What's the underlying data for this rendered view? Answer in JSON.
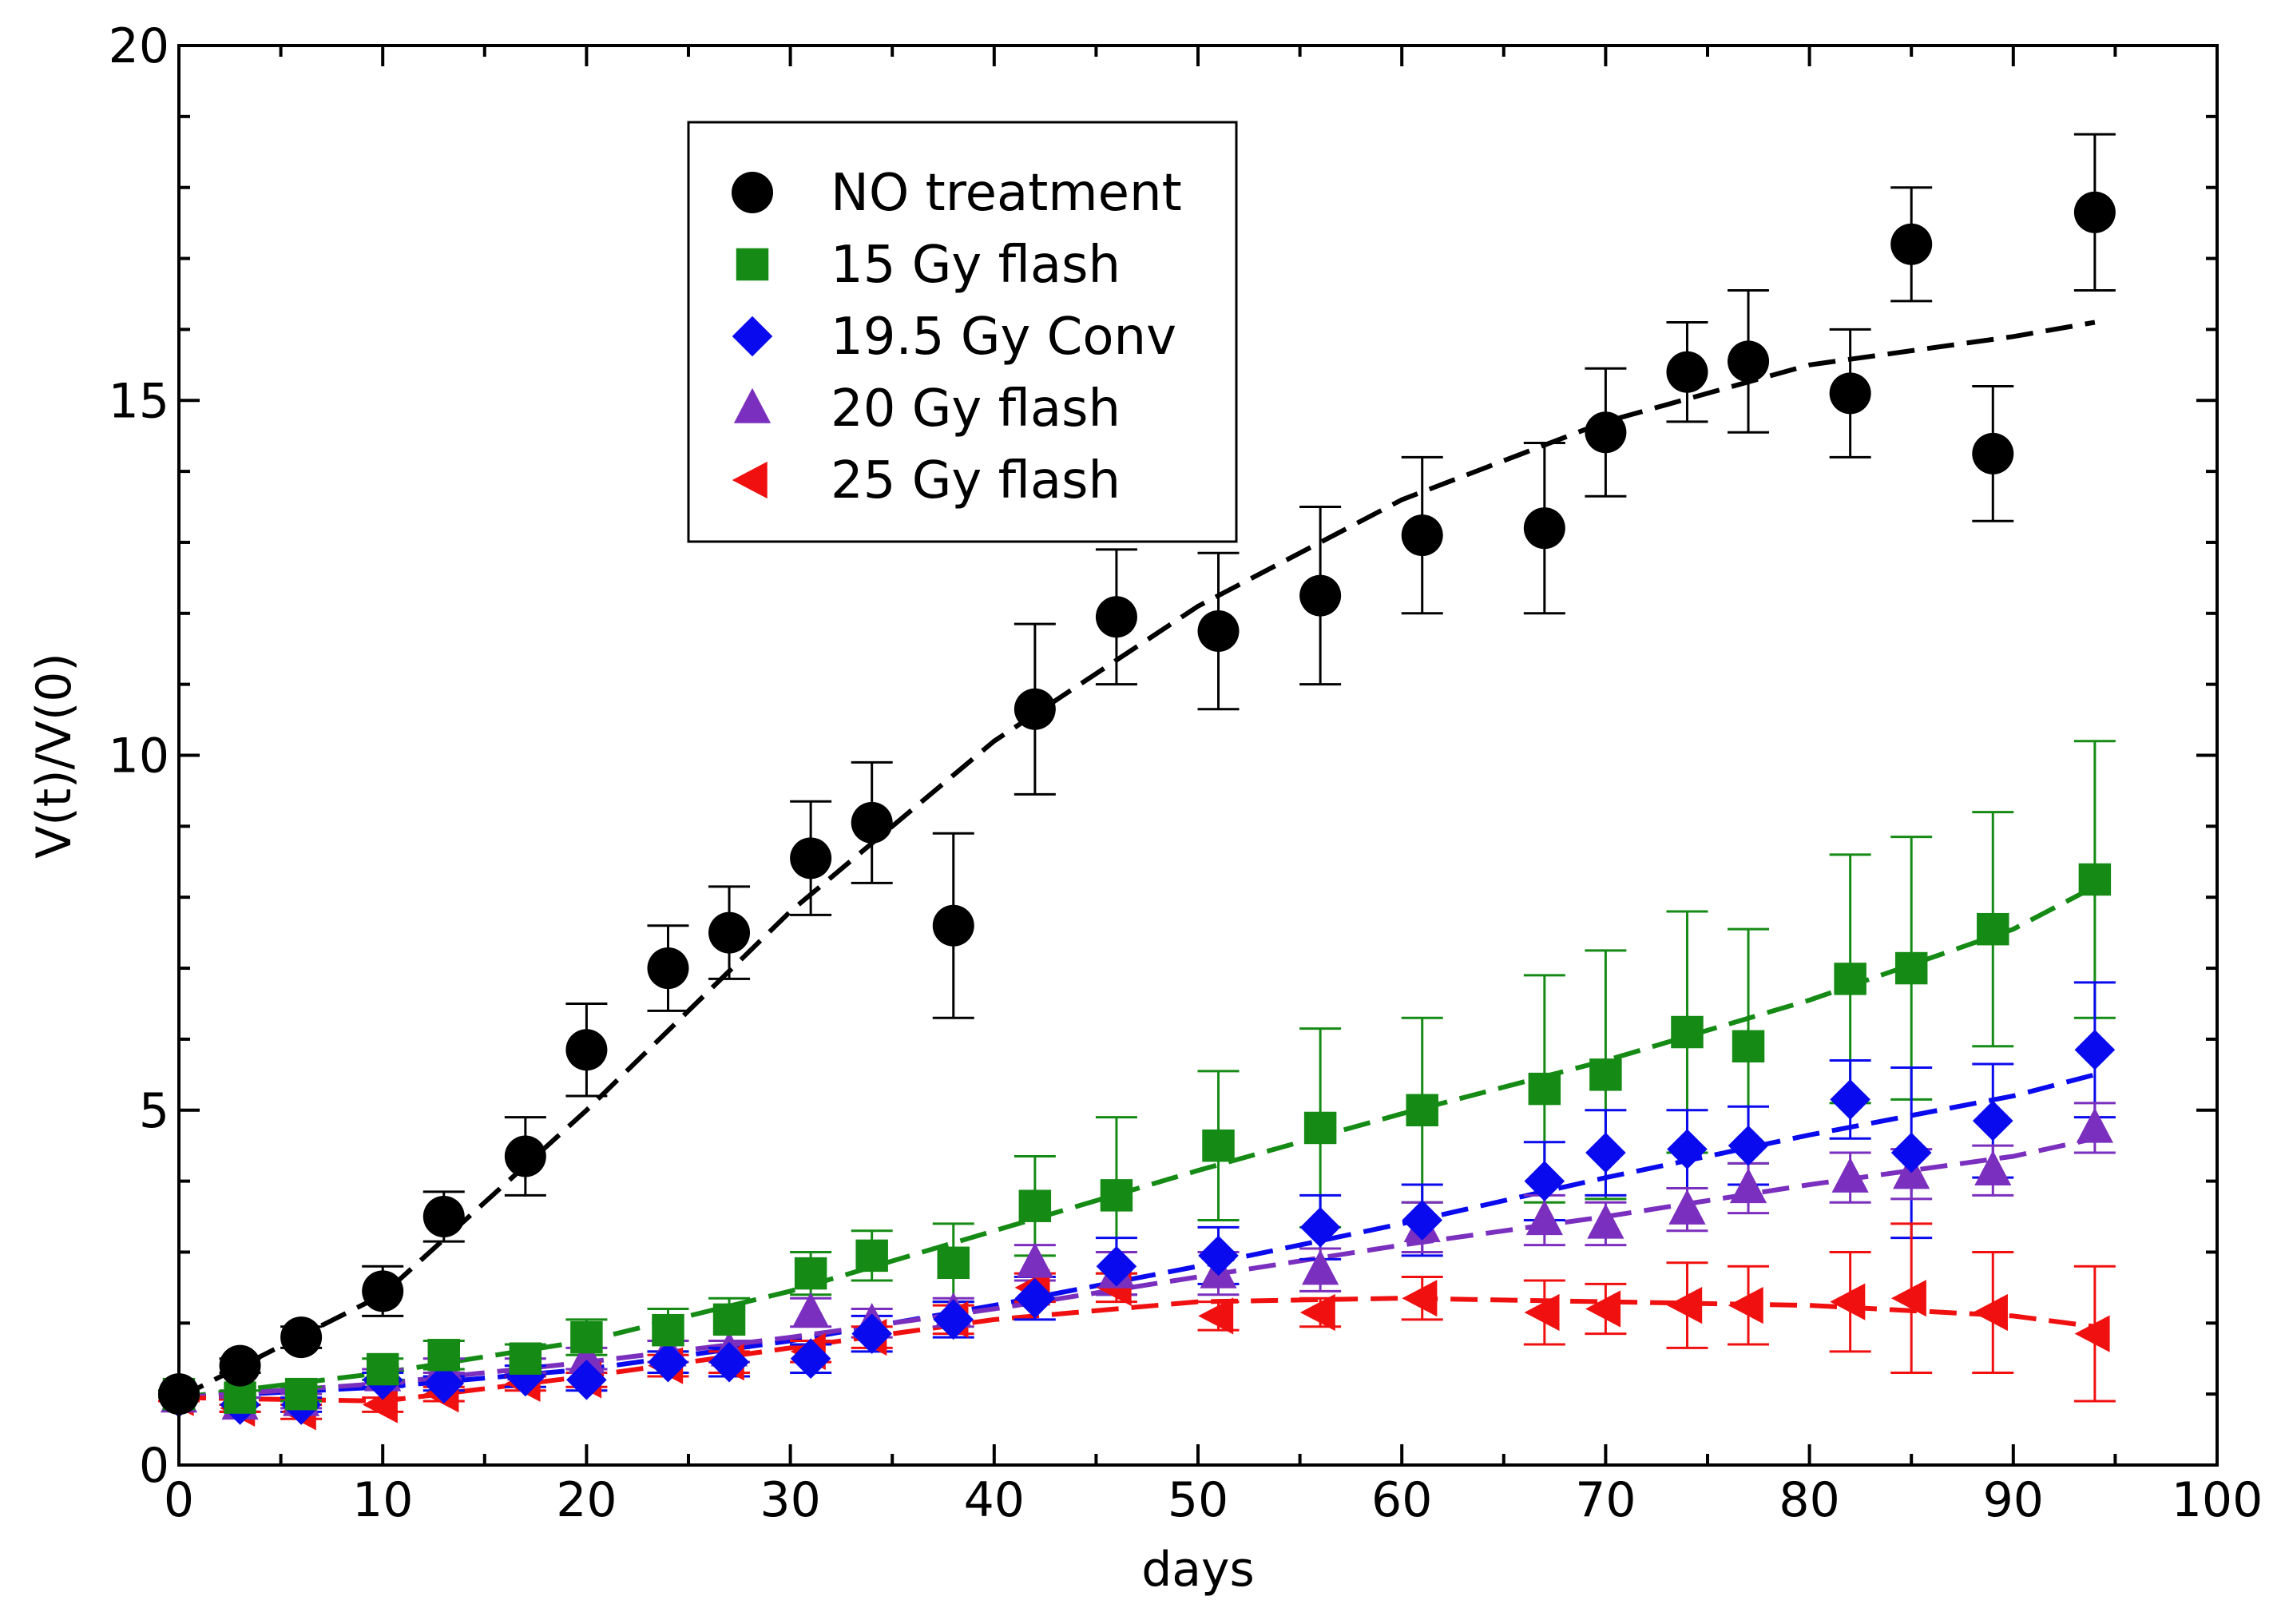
{
  "chart_data": {
    "type": "scatter",
    "title": "",
    "xlabel": "days",
    "ylabel": "V(t)/V(0)",
    "xlim": [
      0,
      100
    ],
    "ylim": [
      0,
      20
    ],
    "xticks": [
      0,
      10,
      20,
      30,
      40,
      50,
      60,
      70,
      80,
      90,
      100
    ],
    "yticks": [
      0,
      5,
      10,
      15,
      20
    ],
    "legend_position": "top-center",
    "series": [
      {
        "name": "NO treatment",
        "marker": "circle",
        "color": "#000000",
        "x": [
          0,
          3,
          6,
          10,
          13,
          17,
          20,
          24,
          27,
          31,
          34,
          38,
          42,
          46,
          51,
          56,
          61,
          67,
          70,
          74,
          77,
          82,
          85,
          89,
          94
        ],
        "y": [
          1.0,
          1.4,
          1.8,
          2.45,
          3.5,
          4.35,
          5.85,
          7.0,
          7.5,
          8.55,
          9.05,
          7.6,
          10.65,
          11.95,
          11.75,
          12.25,
          13.1,
          13.2,
          14.55,
          15.4,
          15.55,
          15.1,
          17.2,
          14.25,
          17.65
        ],
        "err": [
          0.05,
          0.1,
          0.15,
          0.35,
          0.35,
          0.55,
          0.65,
          0.6,
          0.65,
          0.8,
          0.85,
          1.3,
          1.2,
          0.95,
          1.1,
          1.25,
          1.1,
          1.2,
          0.9,
          0.7,
          1.0,
          0.9,
          0.8,
          0.95,
          1.1
        ],
        "fit": {
          "x": [
            0,
            10,
            20,
            30,
            40,
            50,
            60,
            70,
            80,
            90,
            94
          ],
          "y": [
            0.95,
            2.4,
            5.0,
            7.8,
            10.2,
            12.1,
            13.6,
            14.7,
            15.5,
            15.9,
            16.1
          ]
        }
      },
      {
        "name": "15 Gy flash",
        "marker": "square",
        "color": "#158b15",
        "x": [
          0,
          3,
          6,
          10,
          13,
          17,
          20,
          24,
          27,
          31,
          34,
          38,
          42,
          46,
          51,
          56,
          61,
          67,
          70,
          74,
          77,
          82,
          85,
          89,
          94
        ],
        "y": [
          1.0,
          0.95,
          1.0,
          1.35,
          1.55,
          1.5,
          1.8,
          1.9,
          2.05,
          2.7,
          2.95,
          2.85,
          3.65,
          3.8,
          4.5,
          4.75,
          5.0,
          5.3,
          5.5,
          6.1,
          5.9,
          6.85,
          7.0,
          7.55,
          8.25
        ],
        "err": [
          0.05,
          0.1,
          0.1,
          0.15,
          0.2,
          0.2,
          0.25,
          0.3,
          0.3,
          0.3,
          0.35,
          0.55,
          0.7,
          1.1,
          1.05,
          1.4,
          1.3,
          1.6,
          1.75,
          1.7,
          1.65,
          1.75,
          1.85,
          1.65,
          1.95
        ],
        "fit": {
          "x": [
            0,
            10,
            20,
            30,
            40,
            50,
            60,
            70,
            80,
            90,
            94
          ],
          "y": [
            0.95,
            1.3,
            1.75,
            2.45,
            3.3,
            4.15,
            4.95,
            5.7,
            6.55,
            7.55,
            8.15
          ]
        }
      },
      {
        "name": "19.5 Gy Conv",
        "marker": "diamond",
        "color": "#0a0aee",
        "x": [
          0,
          3,
          6,
          10,
          13,
          17,
          20,
          24,
          27,
          31,
          34,
          38,
          42,
          46,
          51,
          56,
          61,
          67,
          70,
          74,
          77,
          82,
          85,
          89,
          94
        ],
        "y": [
          0.95,
          0.85,
          0.85,
          1.2,
          1.15,
          1.25,
          1.2,
          1.45,
          1.45,
          1.5,
          1.85,
          2.05,
          2.35,
          2.8,
          2.95,
          3.35,
          3.45,
          4.0,
          4.4,
          4.45,
          4.5,
          5.15,
          4.4,
          4.85,
          5.85
        ],
        "err": [
          0.05,
          0.1,
          0.1,
          0.1,
          0.1,
          0.15,
          0.15,
          0.15,
          0.2,
          0.2,
          0.25,
          0.25,
          0.3,
          0.4,
          0.4,
          0.45,
          0.5,
          0.55,
          0.6,
          0.55,
          0.55,
          0.55,
          1.2,
          0.8,
          0.95
        ],
        "fit": {
          "x": [
            0,
            10,
            20,
            30,
            40,
            50,
            60,
            70,
            80,
            90,
            94
          ],
          "y": [
            0.95,
            1.1,
            1.35,
            1.75,
            2.25,
            2.8,
            3.4,
            4.05,
            4.65,
            5.2,
            5.5
          ]
        }
      },
      {
        "name": "20 Gy flash",
        "marker": "triangle-up",
        "color": "#7b2fbe",
        "x": [
          0,
          3,
          6,
          10,
          13,
          17,
          20,
          24,
          27,
          31,
          34,
          38,
          42,
          46,
          51,
          56,
          61,
          67,
          70,
          74,
          77,
          82,
          85,
          89,
          94
        ],
        "y": [
          0.95,
          0.85,
          0.9,
          1.25,
          1.4,
          1.4,
          1.5,
          1.6,
          1.6,
          2.15,
          2.0,
          2.15,
          2.85,
          2.7,
          2.7,
          2.75,
          3.35,
          3.45,
          3.4,
          3.6,
          3.9,
          4.05,
          4.1,
          4.15,
          4.75
        ],
        "err": [
          0.05,
          0.1,
          0.1,
          0.1,
          0.1,
          0.1,
          0.15,
          0.15,
          0.15,
          0.2,
          0.2,
          0.2,
          0.25,
          0.3,
          0.3,
          0.3,
          0.35,
          0.35,
          0.3,
          0.3,
          0.35,
          0.35,
          0.35,
          0.35,
          0.35
        ],
        "fit": {
          "x": [
            0,
            10,
            20,
            30,
            40,
            50,
            60,
            70,
            80,
            90,
            94
          ],
          "y": [
            0.95,
            1.15,
            1.45,
            1.8,
            2.2,
            2.65,
            3.1,
            3.5,
            3.95,
            4.35,
            4.6
          ]
        }
      },
      {
        "name": "25 Gy flash",
        "marker": "triangle-left",
        "color": "#f01010",
        "x": [
          0,
          3,
          6,
          10,
          13,
          17,
          20,
          24,
          27,
          31,
          34,
          38,
          42,
          46,
          51,
          56,
          61,
          67,
          70,
          74,
          77,
          82,
          85,
          89,
          94
        ],
        "y": [
          0.95,
          0.8,
          0.75,
          0.85,
          1.0,
          1.15,
          1.2,
          1.4,
          1.45,
          1.6,
          1.8,
          2.05,
          2.5,
          2.5,
          2.1,
          2.15,
          2.35,
          2.15,
          2.2,
          2.25,
          2.25,
          2.3,
          2.35,
          2.15,
          1.85
        ],
        "err": [
          0.05,
          0.05,
          0.1,
          0.1,
          0.1,
          0.1,
          0.1,
          0.15,
          0.15,
          0.15,
          0.15,
          0.2,
          0.2,
          0.2,
          0.2,
          0.2,
          0.3,
          0.45,
          0.35,
          0.6,
          0.55,
          0.7,
          1.05,
          0.85,
          0.95
        ],
        "fit": {
          "x": [
            0,
            10,
            20,
            30,
            40,
            50,
            60,
            70,
            80,
            90,
            94
          ],
          "y": [
            0.95,
            0.9,
            1.25,
            1.65,
            2.05,
            2.3,
            2.35,
            2.3,
            2.25,
            2.1,
            1.95
          ]
        }
      }
    ]
  }
}
